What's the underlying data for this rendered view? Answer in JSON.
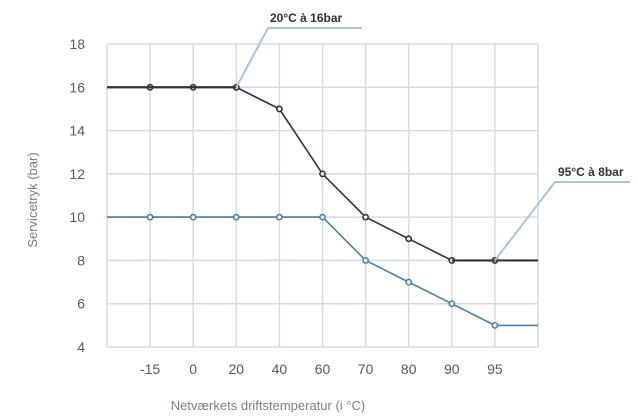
{
  "chart_data": {
    "type": "line",
    "title": "",
    "xlabel": "Netværkets driftstemperatur (i °C)",
    "ylabel": "Servicetryk (bar)",
    "categories": [
      "",
      "-15",
      "0",
      "20",
      "40",
      "60",
      "70",
      "80",
      "90",
      "95",
      ""
    ],
    "ylim": [
      4,
      18
    ],
    "yticks": [
      4,
      6,
      8,
      10,
      12,
      14,
      16,
      18
    ],
    "grid": true,
    "series": [
      {
        "name": "",
        "color": "#2b3340",
        "values": [
          16,
          16,
          16,
          16,
          15,
          12,
          10,
          9,
          8,
          8,
          8
        ],
        "markers": [
          false,
          true,
          true,
          true,
          true,
          true,
          true,
          true,
          true,
          true,
          false
        ]
      },
      {
        "name": "",
        "color": "#4f7fa0",
        "values": [
          10,
          10,
          10,
          10,
          10,
          10,
          8,
          7,
          6,
          5,
          5
        ],
        "markers": [
          false,
          true,
          true,
          true,
          true,
          true,
          true,
          true,
          true,
          true,
          false
        ]
      }
    ],
    "annotations": [
      {
        "text": "20°C à 16bar",
        "series": 0,
        "point": 3
      },
      {
        "text": "95°C à 8bar",
        "series": 0,
        "point": 9
      }
    ]
  }
}
